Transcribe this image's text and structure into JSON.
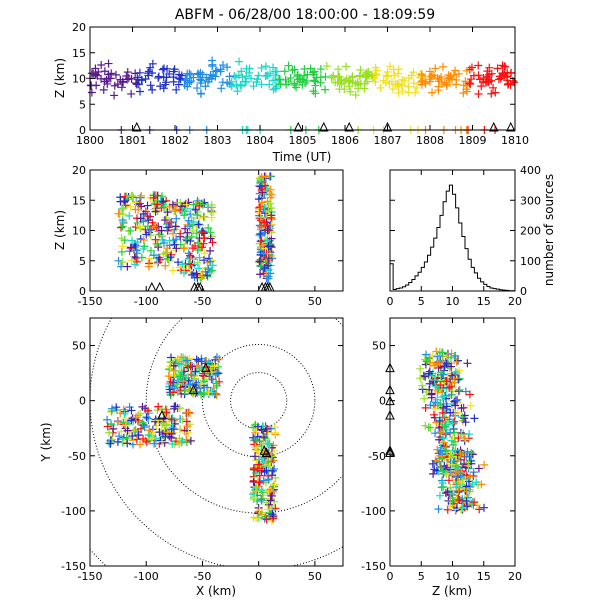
{
  "chart_data": [
    {
      "panel": "time-height",
      "type": "scatter",
      "title": "ABFM - 06/28/00 18:00:00 - 18:09:59",
      "xlabel": "Time (UT)",
      "ylabel": "Z (km)",
      "xlim": [
        1800,
        1810
      ],
      "ylim": [
        0,
        20
      ],
      "xticks": [
        "1800",
        "1801",
        "1802",
        "1803",
        "1804",
        "1805",
        "1806",
        "1807",
        "1808",
        "1809",
        "1810"
      ],
      "yticks": [
        "0",
        "5",
        "10",
        "15",
        "20"
      ],
      "marker": "+",
      "color_by": "time (purple → red)",
      "color_scale": [
        "#5a1a8c",
        "#2030c8",
        "#1f8ce6",
        "#18d8c8",
        "#20d040",
        "#98e020",
        "#f0e020",
        "#ff8c00",
        "#ff1010"
      ],
      "station_marker": "triangle",
      "station_x": [
        1801.1,
        1804.9,
        1805.5,
        1806.1,
        1807.0,
        1809.5,
        1809.9
      ]
    },
    {
      "panel": "x-height",
      "type": "scatter",
      "xlabel": "",
      "ylabel": "Z (km)",
      "xlim": [
        -150,
        75
      ],
      "ylim": [
        0,
        20
      ],
      "xticks": [
        "-150",
        "-100",
        "-50",
        "0",
        "50"
      ],
      "yticks": [
        "0",
        "5",
        "10",
        "15",
        "20"
      ],
      "marker": "+",
      "clusters": [
        {
          "x_range": [
            -125,
            -80
          ],
          "z_range": [
            4,
            16
          ]
        },
        {
          "x_range": [
            -80,
            -40
          ],
          "z_range": [
            2,
            15
          ]
        },
        {
          "x_range": [
            0,
            12
          ],
          "z_range": [
            2,
            19
          ]
        }
      ],
      "station_x": [
        -95,
        -88,
        -57,
        -54,
        -52,
        3,
        6,
        8,
        10
      ]
    },
    {
      "panel": "altitude-histogram",
      "type": "bar",
      "xlabel": "",
      "ylabel": "number of sources",
      "xlim": [
        0,
        20
      ],
      "ylim": [
        0,
        400
      ],
      "xticks": [
        "0",
        "5",
        "10",
        "15",
        "20"
      ],
      "yticks": [
        "0",
        "100",
        "200",
        "300",
        "400"
      ],
      "bin_edges": [
        0,
        0.5,
        1,
        1.5,
        2,
        2.5,
        3,
        3.5,
        4,
        4.5,
        5,
        5.5,
        6,
        6.5,
        7,
        7.5,
        8,
        8.5,
        9,
        9.5,
        10,
        10.5,
        11,
        11.5,
        12,
        12.5,
        13,
        13.5,
        14,
        14.5,
        15,
        15.5,
        16,
        16.5,
        17,
        17.5,
        18,
        18.5,
        19,
        19.5,
        20
      ],
      "values": [
        90,
        5,
        8,
        10,
        14,
        20,
        28,
        38,
        50,
        62,
        78,
        96,
        118,
        145,
        175,
        210,
        250,
        295,
        330,
        350,
        320,
        275,
        225,
        180,
        140,
        105,
        78,
        60,
        42,
        30,
        22,
        15,
        10,
        8,
        6,
        4,
        3,
        2,
        1,
        1
      ]
    },
    {
      "panel": "plan-view",
      "type": "scatter",
      "xlabel": "X (km)",
      "ylabel": "Y (km)",
      "xlim": [
        -150,
        75
      ],
      "ylim": [
        -150,
        75
      ],
      "xticks": [
        "-150",
        "-100",
        "-50",
        "0",
        "50"
      ],
      "yticks": [
        "-150",
        "-100",
        "-50",
        "0",
        "50"
      ],
      "marker": "+",
      "range_rings": true,
      "clusters": [
        {
          "x_range": [
            -135,
            -60
          ],
          "y_range": [
            -40,
            -5
          ]
        },
        {
          "x_range": [
            -80,
            -35
          ],
          "y_range": [
            5,
            40
          ]
        },
        {
          "x_range": [
            -5,
            15
          ],
          "y_range": [
            -110,
            -20
          ]
        }
      ],
      "stations": [
        [
          -47,
          30
        ],
        [
          -58,
          10
        ],
        [
          -86,
          -13
        ],
        [
          5,
          -45
        ],
        [
          7,
          -47
        ]
      ]
    },
    {
      "panel": "z-y",
      "type": "scatter",
      "xlabel": "Z (km)",
      "ylabel": "",
      "xlim": [
        0,
        20
      ],
      "ylim": [
        -150,
        75
      ],
      "xticks": [
        "0",
        "5",
        "10",
        "15",
        "20"
      ],
      "yticks": [
        "-150",
        "-100",
        "-50",
        "0",
        "50"
      ],
      "marker": "+",
      "station_marker": "triangle",
      "station_y": [
        30,
        10,
        0,
        -13,
        -45,
        -47
      ]
    }
  ]
}
